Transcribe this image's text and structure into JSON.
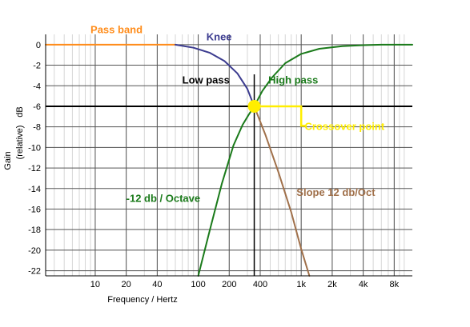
{
  "chart_data": {
    "type": "line",
    "xlabel": "Frequency / Hertz",
    "ylabel": "dB",
    "ylabel_secondary": "Gain",
    "ylabel_tertiary": "(relative)",
    "x_scale": "log",
    "xlim": [
      3.3,
      12000
    ],
    "ylim": [
      -22.5,
      1
    ],
    "x_ticks": [
      {
        "value": 10,
        "label": "10"
      },
      {
        "value": 20,
        "label": "20"
      },
      {
        "value": 40,
        "label": "40"
      },
      {
        "value": 100,
        "label": "100"
      },
      {
        "value": 200,
        "label": "200"
      },
      {
        "value": 400,
        "label": "400"
      },
      {
        "value": 1000,
        "label": "1k"
      },
      {
        "value": 2000,
        "label": "2k"
      },
      {
        "value": 4000,
        "label": "4k"
      },
      {
        "value": 8000,
        "label": "8k"
      }
    ],
    "y_ticks": [
      0,
      -2,
      -4,
      -6,
      -8,
      -10,
      -12,
      -14,
      -16,
      -18,
      -20,
      -22
    ],
    "y_tick_labels": [
      "0",
      "-2",
      "-4",
      "-6",
      "-8",
      "-10",
      "-12",
      "-14",
      "-16",
      "-18",
      "-20",
      "-22"
    ],
    "grid": true,
    "crossover": {
      "x": 350,
      "y": -6,
      "color": "#ffee00"
    },
    "series": [
      {
        "color": "#ff8c1a",
        "x": [
          3.3,
          60
        ],
        "y": [
          0,
          0
        ]
      },
      {
        "color": "#3b3b8f",
        "x": [
          60,
          90,
          130,
          180,
          240,
          300,
          350
        ],
        "y": [
          0,
          -0.3,
          -0.8,
          -1.6,
          -2.8,
          -4.3,
          -6
        ]
      },
      {
        "color": "#a0704a",
        "x": [
          350,
          450,
          600,
          800,
          1000,
          1200
        ],
        "y": [
          -6,
          -8.8,
          -12.4,
          -16.3,
          -19.9,
          -22.5
        ]
      },
      {
        "color": "#1a7a1a",
        "x": [
          100,
          130,
          170,
          220,
          270,
          310,
          350,
          420,
          520,
          700,
          1000,
          1500,
          2500,
          4000,
          6000,
          9000,
          12000
        ],
        "y": [
          -22.5,
          -18,
          -13.5,
          -9.8,
          -7.8,
          -6.8,
          -6,
          -4.5,
          -3.2,
          -1.8,
          -0.9,
          -0.4,
          -0.15,
          -0.05,
          0,
          0,
          0
        ]
      }
    ],
    "annotations": [
      {
        "text": "Pass band",
        "color": "#ff8c1a",
        "x": 9,
        "y": 1.1
      },
      {
        "text": "Knee",
        "color": "#3b3b8f",
        "x": 120,
        "y": 0.4
      },
      {
        "text": "Low pass",
        "color": "#000000",
        "x": 70,
        "y": -3.8
      },
      {
        "text": "High pass",
        "color": "#1a7a1a",
        "x": 480,
        "y": -3.8
      },
      {
        "text": "Crossover point",
        "color": "#ffee00",
        "x": 1080,
        "y": -8.3
      },
      {
        "text": "-12 db / Octave",
        "color": "#1a7a1a",
        "x": 20,
        "y": -15.3
      },
      {
        "text": "Slope 12 db/Oct",
        "color": "#a0704a",
        "x": 900,
        "y": -14.7
      }
    ]
  }
}
